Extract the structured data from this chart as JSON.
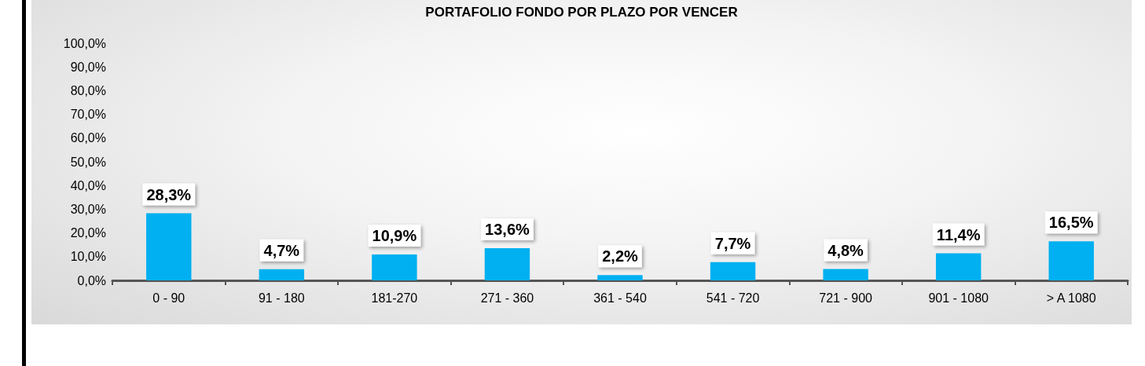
{
  "chart_data": {
    "type": "bar",
    "title": "PORTAFOLIO FONDO POR PLAZO POR VENCER",
    "categories": [
      "0 - 90",
      "91 - 180",
      "181-270",
      "271 - 360",
      "361 - 540",
      "541 - 720",
      "721 - 900",
      "901 - 1080",
      "> A 1080"
    ],
    "values": [
      28.3,
      4.7,
      10.9,
      13.6,
      2.2,
      7.7,
      4.8,
      11.4,
      16.5
    ],
    "value_labels": [
      "28,3%",
      "4,7%",
      "10,9%",
      "13,6%",
      "2,2%",
      "7,7%",
      "4,8%",
      "11,4%",
      "16,5%"
    ],
    "color": "#00b0f0",
    "ylim": [
      0,
      100
    ],
    "yticks": [
      {
        "value": 0,
        "label": "0,0%"
      },
      {
        "value": 10,
        "label": "10,0%"
      },
      {
        "value": 20,
        "label": "20,0%"
      },
      {
        "value": 30,
        "label": "30,0%"
      },
      {
        "value": 40,
        "label": "40,0%"
      },
      {
        "value": 50,
        "label": "50,0%"
      },
      {
        "value": 60,
        "label": "60,0%"
      },
      {
        "value": 70,
        "label": "70,0%"
      },
      {
        "value": 80,
        "label": "80,0%"
      },
      {
        "value": 90,
        "label": "90,0%"
      },
      {
        "value": 100,
        "label": "100,0%"
      }
    ],
    "grid": false
  }
}
